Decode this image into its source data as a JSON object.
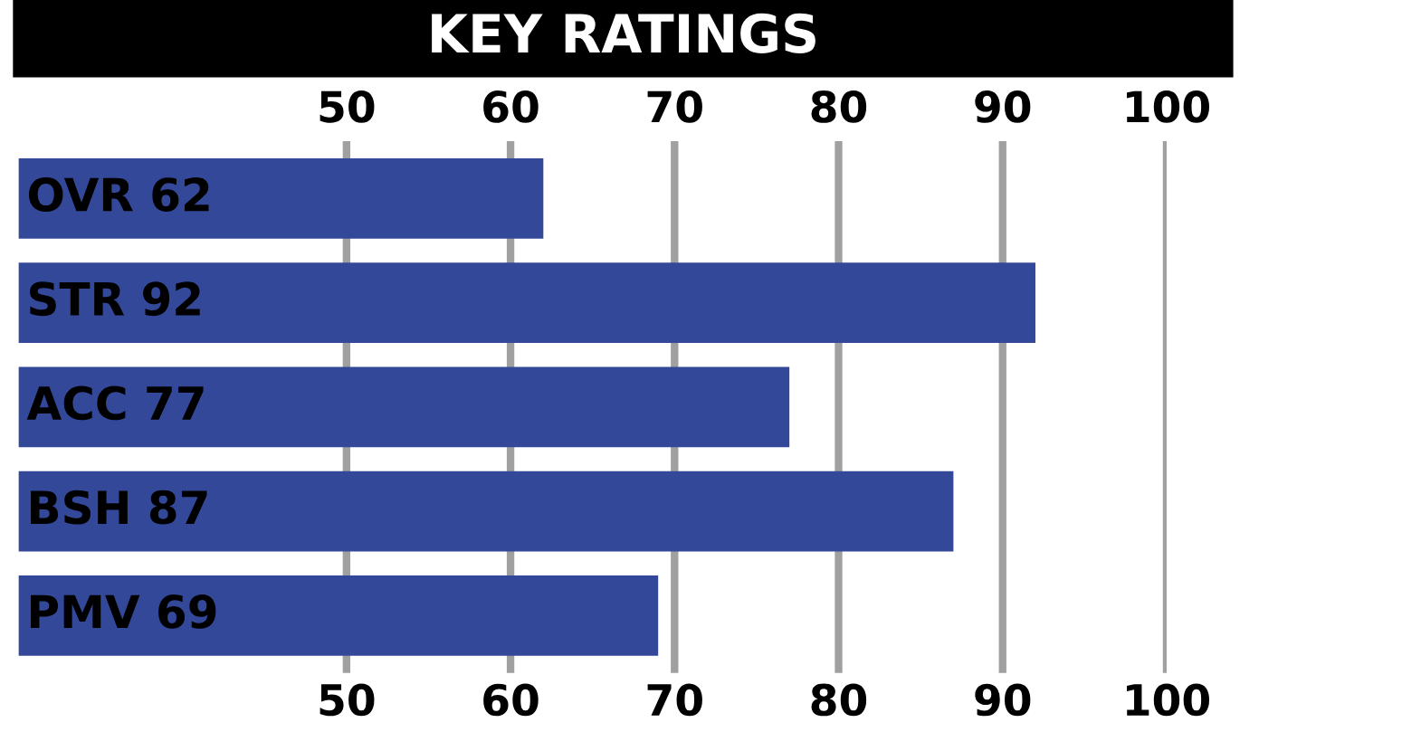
{
  "chart_data": {
    "type": "bar",
    "orientation": "horizontal",
    "title": "KEY RATINGS",
    "categories": [
      "OVR 62",
      "STR 92",
      "ACC 77",
      "BSH 87",
      "PMV 69"
    ],
    "values": [
      62,
      92,
      77,
      87,
      69
    ],
    "color": "#34489a",
    "xlim": [
      30,
      100
    ],
    "xticks": [
      50,
      60,
      70,
      80,
      90,
      100
    ],
    "x2lim": [
      30,
      100
    ],
    "x2ticks": [
      50,
      60,
      70,
      80,
      90,
      100
    ],
    "grid": "x"
  }
}
